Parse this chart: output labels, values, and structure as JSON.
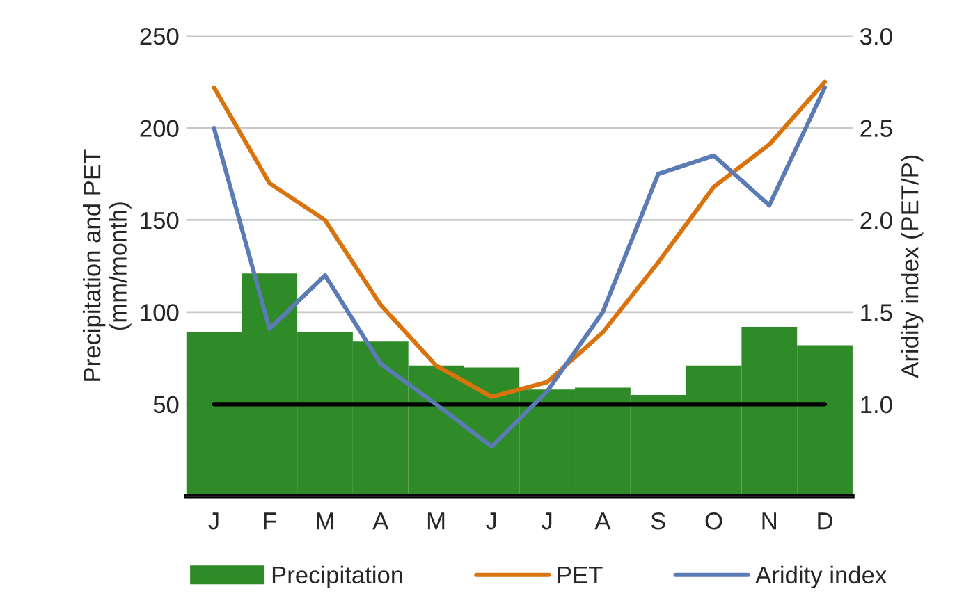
{
  "chart_data": {
    "type": "bar",
    "ylabel": "Precipitation and PET\n(mm/month)",
    "y2label": "Aridity index (PET/P)",
    "categories": [
      "J",
      "F",
      "M",
      "A",
      "M",
      "J",
      "J",
      "A",
      "S",
      "O",
      "N",
      "D"
    ],
    "series": [
      {
        "name": "Precipitation",
        "color": "#2e8b27",
        "values": [
          89,
          121,
          89,
          84,
          71,
          70,
          58,
          59,
          55,
          71,
          92,
          82
        ]
      },
      {
        "name": "PET",
        "type": "line",
        "color": "#d9730d",
        "values": [
          222,
          170,
          150,
          104,
          71,
          54,
          62,
          89,
          127,
          168,
          191,
          225
        ]
      },
      {
        "name": "Aridity index",
        "type": "line",
        "axis": "y2",
        "color": "#5b7bb5",
        "values": [
          2.5,
          1.41,
          1.7,
          1.22,
          1.0,
          0.77,
          1.07,
          1.5,
          2.25,
          2.35,
          2.08,
          2.72
        ]
      }
    ],
    "ylim": [
      0,
      250
    ],
    "yticks": [
      {
        "value": 0,
        "label": null
      },
      50,
      100,
      150,
      200,
      250
    ],
    "y2lim": [
      0.5,
      3.0
    ],
    "y2ticks": [
      {
        "value": 0.5,
        "label": null
      },
      {
        "value": 1.0,
        "label": "1.0"
      },
      {
        "value": 1.5,
        "label": "1.5"
      },
      {
        "value": 2.0,
        "label": "2.0"
      },
      {
        "value": 2.5,
        "label": "2.5"
      },
      {
        "value": 3.0,
        "label": "3.0"
      }
    ],
    "ref_lines": [
      {
        "axis": "y",
        "value": 50,
        "color": "#000000",
        "line_style": "solid"
      }
    ],
    "grid": "y",
    "legend": "bottom",
    "line_style": "solid",
    "marker": "none"
  }
}
